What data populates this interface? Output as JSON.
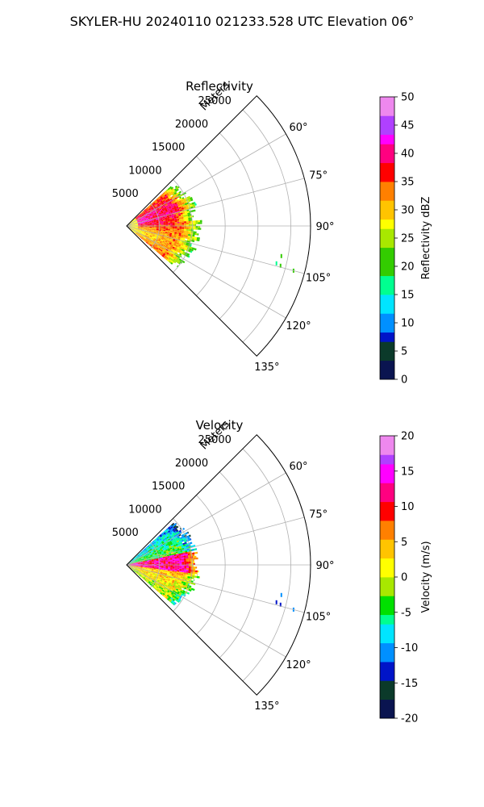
{
  "figure": {
    "title": "SKYLER-HU  20240110  021233.528 UTC Elevation 06°"
  },
  "chart_data": [
    {
      "type": "heatmap",
      "projection": "polar-sector",
      "title": "Reflectivity",
      "radial_label": "Meters",
      "radial_ticks": [
        5000,
        10000,
        15000,
        20000,
        25000
      ],
      "radial_tick_labels": [
        "5000",
        "10000",
        "15000",
        "20000",
        "25000"
      ],
      "azimuth_ticks": [
        60,
        75,
        90,
        105,
        120,
        135
      ],
      "azimuth_tick_labels": [
        "60°",
        "75°",
        "90°",
        "105°",
        "120°",
        "135°"
      ],
      "azimuth_range": [
        45,
        135
      ],
      "range_max": 28000,
      "grid": true,
      "colorbar": {
        "label": "Reflectivity dBZ",
        "range": [
          0,
          50
        ],
        "ticks": [
          0,
          5,
          10,
          15,
          20,
          25,
          30,
          35,
          40,
          45,
          50
        ],
        "tick_labels": [
          "0",
          "5",
          "10",
          "15",
          "20",
          "25",
          "30",
          "35",
          "40",
          "45",
          "50"
        ]
      },
      "echo": {
        "max_range_m": 11000,
        "core_range_m": 7000,
        "azimuth_extent": [
          48,
          130
        ],
        "core_value": 35,
        "edge_value": 15,
        "scattered_gates": [
          {
            "az": 101,
            "r": 24000,
            "value": 20
          },
          {
            "az": 104,
            "r": 23500,
            "value": 18
          },
          {
            "az": 104.5,
            "r": 24200,
            "value": 22
          },
          {
            "az": 105,
            "r": 26300,
            "value": 19
          }
        ]
      }
    },
    {
      "type": "heatmap",
      "projection": "polar-sector",
      "title": "Velocity",
      "radial_label": "Meters",
      "radial_ticks": [
        5000,
        10000,
        15000,
        20000,
        25000
      ],
      "radial_tick_labels": [
        "5000",
        "10000",
        "15000",
        "20000",
        "25000"
      ],
      "azimuth_ticks": [
        60,
        75,
        90,
        105,
        120,
        135
      ],
      "azimuth_tick_labels": [
        "60°",
        "75°",
        "90°",
        "105°",
        "120°",
        "135°"
      ],
      "azimuth_range": [
        45,
        135
      ],
      "range_max": 28000,
      "grid": true,
      "colorbar": {
        "label": "Velocity (m/s)",
        "range": [
          -20,
          20
        ],
        "ticks": [
          -20,
          -15,
          -10,
          -5,
          0,
          5,
          10,
          15,
          20
        ],
        "tick_labels": [
          "-20",
          "-15",
          "-10",
          "-5",
          "0",
          "5",
          "10",
          "15",
          "20"
        ]
      },
      "echo": {
        "max_range_m": 11000,
        "core_range_m": 7000,
        "azimuth_extent": [
          48,
          130
        ],
        "core_value": 12,
        "edge_value": -10,
        "scattered_gates": [
          {
            "az": 101,
            "r": 24000,
            "value": -12
          },
          {
            "az": 104,
            "r": 23500,
            "value": -15
          },
          {
            "az": 104.5,
            "r": 24200,
            "value": -13
          },
          {
            "az": 105,
            "r": 26300,
            "value": -11
          }
        ]
      }
    }
  ]
}
